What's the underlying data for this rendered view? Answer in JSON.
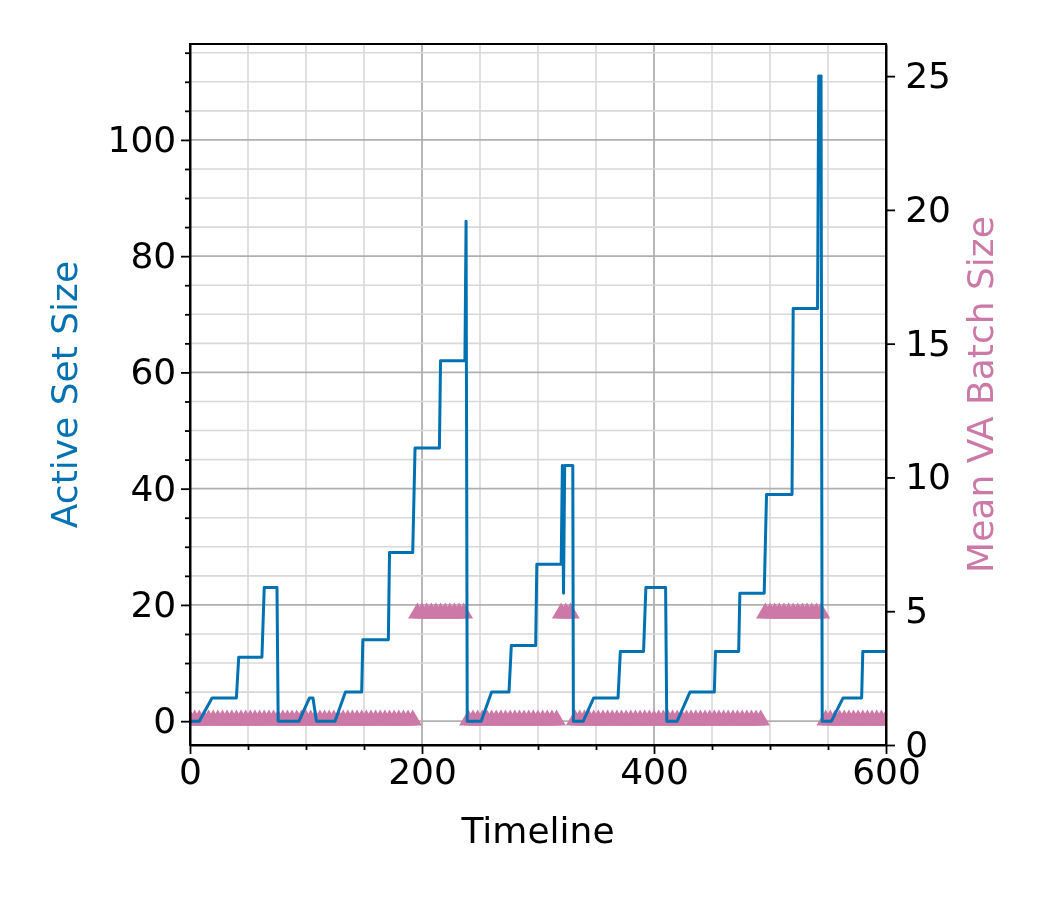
{
  "chart_data": {
    "type": "line",
    "xlabel": "Timeline",
    "ylabel": "Active Set Size",
    "y2label": "Mean VA Batch Size",
    "xlim": [
      0,
      600
    ],
    "xticks": [
      0,
      {
        "value": 50,
        "label": null
      },
      {
        "value": 100,
        "label": null
      },
      {
        "value": 150,
        "label": null
      },
      200,
      {
        "value": 250,
        "label": null
      },
      {
        "value": 300,
        "label": null
      },
      {
        "value": 350,
        "label": null
      },
      400,
      {
        "value": 450,
        "label": null
      },
      {
        "value": 500,
        "label": null
      },
      {
        "value": 550,
        "label": null
      },
      600
    ],
    "ylim": [
      -4.1,
      116.5
    ],
    "yticks": [
      0,
      {
        "value": 5,
        "label": null
      },
      {
        "value": 10,
        "label": null
      },
      {
        "value": 15,
        "label": null
      },
      20,
      {
        "value": 25,
        "label": null
      },
      {
        "value": 30,
        "label": null
      },
      {
        "value": 35,
        "label": null
      },
      40,
      {
        "value": 45,
        "label": null
      },
      {
        "value": 50,
        "label": null
      },
      {
        "value": 55,
        "label": null
      },
      60,
      {
        "value": 65,
        "label": null
      },
      {
        "value": 70,
        "label": null
      },
      {
        "value": 75,
        "label": null
      },
      80,
      {
        "value": 85,
        "label": null
      },
      {
        "value": 90,
        "label": null
      },
      {
        "value": 95,
        "label": null
      },
      100,
      {
        "value": 105,
        "label": null
      },
      {
        "value": 110,
        "label": null
      },
      {
        "value": 115,
        "label": null
      }
    ],
    "y2lim": [
      0,
      26.2
    ],
    "y2ticks": [
      0,
      5,
      10,
      15,
      20,
      25
    ],
    "grid": true,
    "line_style": "solid",
    "series": [
      {
        "color": "#0072b2",
        "marker": "none",
        "x": [
          0,
          8,
          19,
          40,
          42,
          62,
          64,
          75,
          76,
          94,
          103,
          106,
          109,
          125,
          134,
          148,
          149,
          171,
          172,
          192,
          194,
          215,
          216,
          237,
          238,
          239,
          251,
          260,
          275,
          277,
          298,
          299,
          320,
          321,
          322,
          323,
          330,
          330.5,
          339,
          348,
          369,
          371,
          391,
          393,
          410,
          411,
          420,
          431,
          452,
          453,
          473,
          474,
          495,
          497,
          519,
          520,
          541,
          542,
          544,
          545,
          553,
          563,
          579,
          580,
          600
        ],
        "values": [
          0,
          0,
          4,
          4,
          11,
          11,
          23,
          23,
          0,
          0,
          4,
          4,
          0,
          0,
          5,
          5,
          14,
          14,
          29,
          29,
          47,
          47,
          62,
          62,
          86,
          0,
          0,
          5,
          5,
          13,
          13,
          27,
          27,
          44,
          22,
          44,
          44,
          0,
          0,
          4,
          4,
          12,
          12,
          23,
          23,
          0,
          0,
          5,
          5,
          12,
          12,
          22,
          22,
          39,
          39,
          71,
          71,
          111,
          111,
          0,
          0,
          4,
          4,
          12,
          12
        ]
      },
      {
        "type": "scatter",
        "axis": "y2",
        "color": "#cc79a7",
        "marker": "triangle",
        "x": [
          0,
          4,
          8,
          12,
          16,
          20,
          24,
          28,
          32,
          36,
          40,
          44,
          48,
          52,
          56,
          60,
          64,
          68,
          72,
          76,
          80,
          84,
          88,
          92,
          96,
          100,
          104,
          108,
          112,
          116,
          120,
          124,
          128,
          132,
          136,
          140,
          144,
          148,
          152,
          156,
          160,
          164,
          168,
          172,
          176,
          180,
          184,
          188,
          192,
          196,
          200,
          204,
          208,
          212,
          216,
          220,
          224,
          228,
          232,
          236,
          240,
          244,
          248,
          252,
          256,
          260,
          264,
          268,
          272,
          276,
          280,
          284,
          288,
          292,
          296,
          300,
          304,
          308,
          312,
          316,
          320,
          324,
          328,
          332,
          336,
          340,
          344,
          348,
          352,
          356,
          360,
          364,
          368,
          372,
          376,
          380,
          384,
          388,
          392,
          396,
          400,
          404,
          408,
          412,
          416,
          420,
          424,
          428,
          432,
          436,
          440,
          444,
          448,
          452,
          456,
          460,
          464,
          468,
          472,
          476,
          480,
          484,
          488,
          492,
          496,
          500,
          504,
          508,
          512,
          516,
          520,
          524,
          528,
          532,
          536,
          540,
          544,
          548,
          552,
          556,
          560,
          564,
          568,
          572,
          576,
          580,
          584,
          588,
          592,
          596,
          600
        ],
        "values": [
          1,
          1,
          1,
          1,
          1,
          1,
          1,
          1,
          1,
          1,
          1,
          1,
          1,
          1,
          1,
          1,
          1,
          1,
          1,
          1,
          1,
          1,
          1,
          1,
          1,
          1,
          1,
          1,
          1,
          1,
          1,
          1,
          1,
          1,
          1,
          1,
          1,
          1,
          1,
          1,
          1,
          1,
          1,
          1,
          1,
          1,
          1,
          1,
          1,
          5,
          5,
          5,
          5,
          5,
          5,
          5,
          5,
          5,
          5,
          5,
          1,
          1,
          1,
          1,
          1,
          1,
          1,
          1,
          1,
          1,
          1,
          1,
          1,
          1,
          1,
          1,
          1,
          1,
          1,
          1,
          5,
          5,
          5,
          1,
          1,
          1,
          1,
          1,
          1,
          1,
          1,
          1,
          1,
          1,
          1,
          1,
          1,
          1,
          1,
          1,
          1,
          1,
          1,
          1,
          1,
          1,
          1,
          1,
          1,
          1,
          1,
          1,
          1,
          1,
          1,
          1,
          1,
          1,
          1,
          1,
          1,
          1,
          1,
          1,
          5,
          5,
          5,
          5,
          5,
          5,
          5,
          5,
          5,
          5,
          5,
          5,
          5,
          1,
          1,
          1,
          1,
          1,
          1,
          1,
          1,
          1,
          1,
          1,
          1,
          1,
          1
        ]
      }
    ]
  }
}
